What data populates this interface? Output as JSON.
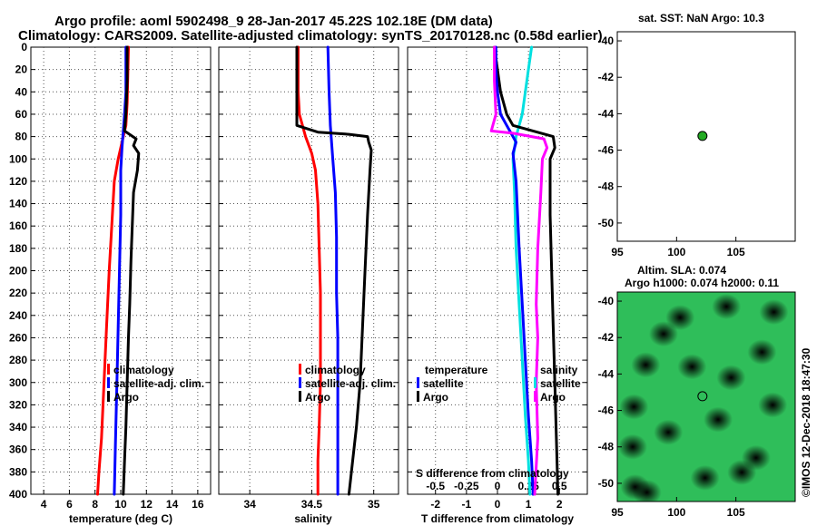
{
  "header": {
    "title_line1": "Argo profile: aoml 5902498_9 28-Jan-2017 45.22S 102.18E (DM data)",
    "title_line2": "Climatology: CARS2009. Satellite-adjusted climatology: synTS_20170128.nc (0.58d earlier)"
  },
  "colors": {
    "climatology": "#ff0000",
    "satellite": "#0000ff",
    "argo": "#000000",
    "salinity": "#ff00ff",
    "temperature": "#00e0e0"
  },
  "depth_ticks": [
    0,
    20,
    40,
    60,
    80,
    100,
    120,
    140,
    160,
    180,
    200,
    220,
    240,
    260,
    280,
    300,
    320,
    340,
    360,
    380,
    400
  ],
  "chart_data": [
    {
      "type": "line",
      "id": "temperature",
      "xlabel": "temperature (deg C)",
      "ylabel": "depth",
      "xlim": [
        3,
        17
      ],
      "ylim": [
        400,
        0
      ],
      "xticks": [
        4,
        6,
        8,
        10,
        12,
        14,
        16
      ],
      "xtick_labels": [
        "4",
        "6",
        "8",
        "10",
        "12",
        "14",
        "16"
      ],
      "grid": true,
      "legend": [
        "climatology",
        "satellite-adj. clim.",
        "Argo"
      ],
      "series": [
        {
          "name": "climatology",
          "color": "#ff0000",
          "points": [
            [
              10.6,
              0
            ],
            [
              10.5,
              50
            ],
            [
              10.4,
              70
            ],
            [
              10.2,
              80
            ],
            [
              9.8,
              100
            ],
            [
              9.5,
              120
            ],
            [
              9.3,
              160
            ],
            [
              9.1,
              200
            ],
            [
              8.9,
              250
            ],
            [
              8.7,
              300
            ],
            [
              8.5,
              350
            ],
            [
              8.3,
              380
            ],
            [
              8.2,
              400
            ]
          ]
        },
        {
          "name": "satellite-adj. clim.",
          "color": "#0000ff",
          "points": [
            [
              10.4,
              0
            ],
            [
              10.4,
              40
            ],
            [
              10.3,
              60
            ],
            [
              10.2,
              75
            ],
            [
              10.1,
              90
            ],
            [
              10.0,
              110
            ],
            [
              10.0,
              150
            ],
            [
              9.9,
              200
            ],
            [
              9.8,
              250
            ],
            [
              9.7,
              300
            ],
            [
              9.6,
              350
            ],
            [
              9.5,
              400
            ]
          ]
        },
        {
          "name": "Argo",
          "color": "#000000",
          "points": [
            [
              10.5,
              0
            ],
            [
              10.5,
              30
            ],
            [
              10.4,
              60
            ],
            [
              10.3,
              75
            ],
            [
              11.2,
              82
            ],
            [
              11.0,
              88
            ],
            [
              11.4,
              95
            ],
            [
              11.3,
              110
            ],
            [
              11.0,
              130
            ],
            [
              10.9,
              160
            ],
            [
              10.8,
              190
            ],
            [
              10.7,
              230
            ],
            [
              10.6,
              260
            ],
            [
              10.5,
              300
            ],
            [
              10.4,
              340
            ],
            [
              10.3,
              370
            ],
            [
              10.2,
              400
            ]
          ]
        }
      ]
    },
    {
      "type": "line",
      "id": "salinity",
      "xlabel": "salinity",
      "ylabel": "depth",
      "xlim": [
        33.75,
        35.2
      ],
      "ylim": [
        400,
        0
      ],
      "xticks": [
        34,
        34.5,
        35
      ],
      "xtick_labels": [
        "34",
        "34.5",
        "35"
      ],
      "grid": true,
      "legend": [
        "climatology",
        "satellite-adj. clim.",
        "Argo"
      ],
      "series": [
        {
          "name": "climatology",
          "color": "#ff0000",
          "points": [
            [
              34.39,
              0
            ],
            [
              34.39,
              40
            ],
            [
              34.4,
              60
            ],
            [
              34.45,
              80
            ],
            [
              34.5,
              95
            ],
            [
              34.53,
              110
            ],
            [
              34.55,
              140
            ],
            [
              34.56,
              180
            ],
            [
              34.57,
              220
            ],
            [
              34.57,
              260
            ],
            [
              34.57,
              300
            ],
            [
              34.56,
              340
            ],
            [
              34.55,
              370
            ],
            [
              34.55,
              400
            ]
          ]
        },
        {
          "name": "satellite-adj. clim.",
          "color": "#0000ff",
          "points": [
            [
              34.63,
              0
            ],
            [
              34.64,
              40
            ],
            [
              34.65,
              70
            ],
            [
              34.67,
              100
            ],
            [
              34.69,
              130
            ],
            [
              34.7,
              170
            ],
            [
              34.7,
              220
            ],
            [
              34.71,
              260
            ],
            [
              34.71,
              300
            ],
            [
              34.71,
              340
            ],
            [
              34.71,
              370
            ],
            [
              34.71,
              400
            ]
          ]
        },
        {
          "name": "Argo",
          "color": "#000000",
          "points": [
            [
              34.38,
              0
            ],
            [
              34.38,
              30
            ],
            [
              34.38,
              50
            ],
            [
              34.38,
              70
            ],
            [
              34.55,
              76
            ],
            [
              34.8,
              78
            ],
            [
              34.95,
              80
            ],
            [
              34.96,
              85
            ],
            [
              34.98,
              92
            ],
            [
              34.97,
              110
            ],
            [
              34.95,
              150
            ],
            [
              34.93,
              200
            ],
            [
              34.91,
              250
            ],
            [
              34.89,
              300
            ],
            [
              34.86,
              340
            ],
            [
              34.83,
              370
            ],
            [
              34.8,
              400
            ]
          ]
        }
      ]
    },
    {
      "type": "line",
      "id": "difference",
      "xlabel": "T difference from climatology",
      "xlabel_top": "S difference from climatology",
      "ylabel": "depth",
      "xlim": [
        -2.9,
        2.9
      ],
      "ylim": [
        400,
        0
      ],
      "xticks": [
        -2,
        -1,
        0,
        1,
        2
      ],
      "xtick_labels": [
        "-2",
        "-1",
        "0",
        "1",
        "2"
      ],
      "s_xticks": [
        -0.5,
        -0.25,
        0,
        0.25,
        0.5
      ],
      "s_xtick_labels": [
        "-0.5",
        "-0.25",
        "0",
        "0.25",
        "0.5"
      ],
      "grid": true,
      "legend_left_title": "temperature",
      "legend_left": [
        "satellite",
        "Argo"
      ],
      "legend_right_title": "salinity",
      "legend_right": [
        "satellite",
        "Argo"
      ],
      "series": [
        {
          "name": "temperature satellite",
          "color": "#00e0e0",
          "points": [
            [
              1.1,
              0
            ],
            [
              1.0,
              20
            ],
            [
              0.9,
              40
            ],
            [
              0.8,
              60
            ],
            [
              0.7,
              70
            ],
            [
              0.6,
              80
            ],
            [
              0.55,
              90
            ],
            [
              0.5,
              100
            ],
            [
              0.55,
              130
            ],
            [
              0.6,
              180
            ],
            [
              0.7,
              230
            ],
            [
              0.8,
              280
            ],
            [
              0.9,
              330
            ],
            [
              1.0,
              370
            ],
            [
              1.05,
              400
            ]
          ]
        },
        {
          "name": "temperature Argo",
          "color": "#000000",
          "points": [
            [
              -0.1,
              0
            ],
            [
              0.0,
              20
            ],
            [
              0.1,
              40
            ],
            [
              0.3,
              60
            ],
            [
              0.5,
              70
            ],
            [
              1.8,
              80
            ],
            [
              1.85,
              90
            ],
            [
              1.7,
              100
            ],
            [
              1.7,
              150
            ],
            [
              1.75,
              200
            ],
            [
              1.8,
              250
            ],
            [
              1.85,
              300
            ],
            [
              1.9,
              350
            ],
            [
              1.95,
              400
            ]
          ]
        },
        {
          "name": "salinity satellite",
          "color": "#0000ff",
          "points": [
            [
              -0.05,
              0
            ],
            [
              -0.05,
              20
            ],
            [
              0.0,
              40
            ],
            [
              0.1,
              60
            ],
            [
              0.3,
              70
            ],
            [
              0.5,
              80
            ],
            [
              0.6,
              85
            ],
            [
              0.5,
              95
            ],
            [
              0.6,
              120
            ],
            [
              0.7,
              180
            ],
            [
              0.8,
              230
            ],
            [
              0.9,
              280
            ],
            [
              1.0,
              330
            ],
            [
              1.1,
              370
            ],
            [
              1.15,
              400
            ]
          ]
        },
        {
          "name": "salinity Argo",
          "color": "#ff00ff",
          "points": [
            [
              -0.1,
              0
            ],
            [
              -0.1,
              30
            ],
            [
              -0.05,
              60
            ],
            [
              -0.2,
              75
            ],
            [
              0.5,
              77
            ],
            [
              1.5,
              82
            ],
            [
              1.6,
              90
            ],
            [
              1.45,
              100
            ],
            [
              1.4,
              130
            ],
            [
              1.3,
              180
            ],
            [
              1.25,
              230
            ],
            [
              1.3,
              260
            ],
            [
              1.25,
              300
            ],
            [
              1.3,
              350
            ],
            [
              1.2,
              400
            ]
          ]
        }
      ]
    },
    {
      "type": "scatter",
      "id": "sst_map",
      "title": "sat. SST: NaN Argo: 10.3",
      "xlim": [
        95,
        110
      ],
      "ylim": [
        -51,
        -39.5
      ],
      "xticks": [
        95,
        100,
        105
      ],
      "xtick_labels": [
        "95",
        "100",
        "105"
      ],
      "yticks": [
        -40,
        -42,
        -44,
        -46,
        -48,
        -50
      ],
      "ytick_labels": [
        "-40",
        "-42",
        "-44",
        "-46",
        "-48",
        "-50"
      ],
      "points": [
        {
          "lon": 102.18,
          "lat": -45.22,
          "label": "Argo"
        }
      ]
    },
    {
      "type": "heatmap",
      "id": "sla_map",
      "title_line1": "Altim. SLA: 0.074",
      "title_line2": "Argo h1000: 0.074 h2000: 0.11",
      "xlim": [
        95,
        110
      ],
      "ylim": [
        -51,
        -39.5
      ],
      "xticks": [
        95,
        100,
        105
      ],
      "xtick_labels": [
        "95",
        "100",
        "105"
      ],
      "yticks": [
        -40,
        -42,
        -44,
        -46,
        -48,
        -50
      ],
      "ytick_labels": [
        "-40",
        "-42",
        "-44",
        "-46",
        "-48",
        "-50"
      ],
      "points": [
        {
          "lon": 102.18,
          "lat": -45.22,
          "label": "Argo"
        }
      ],
      "blobs": [
        {
          "lon": 96.5,
          "lat": -50.2,
          "color": "#ff9a00"
        },
        {
          "lon": 97.5,
          "lat": -50.5,
          "color": "#ff6a00"
        },
        {
          "lon": 104.2,
          "lat": -40.3,
          "color": "#ffa020"
        },
        {
          "lon": 101.3,
          "lat": -43.6,
          "color": "#ffd21a"
        },
        {
          "lon": 96.3,
          "lat": -48.0,
          "color": "#e8ff1a"
        },
        {
          "lon": 105.5,
          "lat": -49.4,
          "color": "#f0ff20"
        },
        {
          "lon": 108.2,
          "lat": -40.6,
          "color": "#20c8c8"
        },
        {
          "lon": 100.3,
          "lat": -40.9,
          "color": "#20b0c0"
        },
        {
          "lon": 97.4,
          "lat": -43.5,
          "color": "#22b8c4"
        },
        {
          "lon": 104.6,
          "lat": -44.2,
          "color": "#22c0c0"
        },
        {
          "lon": 108.1,
          "lat": -45.7,
          "color": "#18a8b8"
        },
        {
          "lon": 99.3,
          "lat": -47.2,
          "color": "#22c4c4"
        },
        {
          "lon": 106.7,
          "lat": -48.6,
          "color": "#1ab4c0"
        },
        {
          "lon": 102.4,
          "lat": -49.7,
          "color": "#20c0c8"
        },
        {
          "lon": 96.4,
          "lat": -45.8,
          "color": "#dcff22"
        },
        {
          "lon": 103.5,
          "lat": -46.5,
          "color": "#e4ff28"
        },
        {
          "lon": 107.2,
          "lat": -42.8,
          "color": "#e8f820"
        },
        {
          "lon": 98.9,
          "lat": -41.8,
          "color": "#e4ff30"
        }
      ]
    }
  ],
  "watermark": "©IMOS 12-Dec-2018 18:47:30"
}
